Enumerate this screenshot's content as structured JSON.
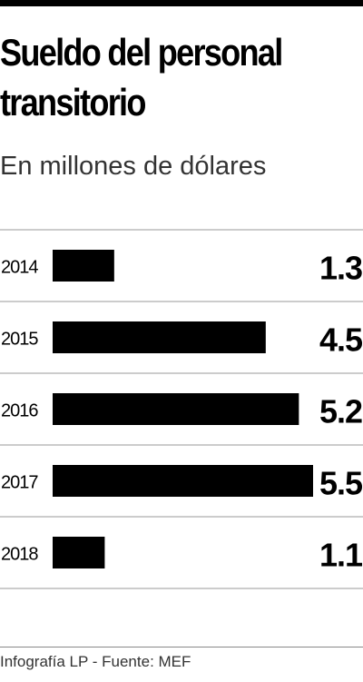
{
  "header": {
    "title_line1": "Sueldo del personal",
    "title_line2": "transitorio",
    "subtitle": "En millones de dólares"
  },
  "chart_data": {
    "type": "bar",
    "orientation": "horizontal",
    "categories": [
      "2014",
      "2015",
      "2016",
      "2017",
      "2018"
    ],
    "values": [
      1.3,
      4.5,
      5.2,
      5.5,
      1.1
    ],
    "value_labels": [
      "1.3",
      "4.5",
      "5.2",
      "5.5",
      "1.1"
    ],
    "title": "Sueldo del personal transitorio",
    "subtitle": "En millones de dólares",
    "xlim": [
      0,
      5.5
    ],
    "grid": false,
    "bar_color": "#000000"
  },
  "footer": {
    "source": "Infografía LP - Fuente: MEF"
  }
}
